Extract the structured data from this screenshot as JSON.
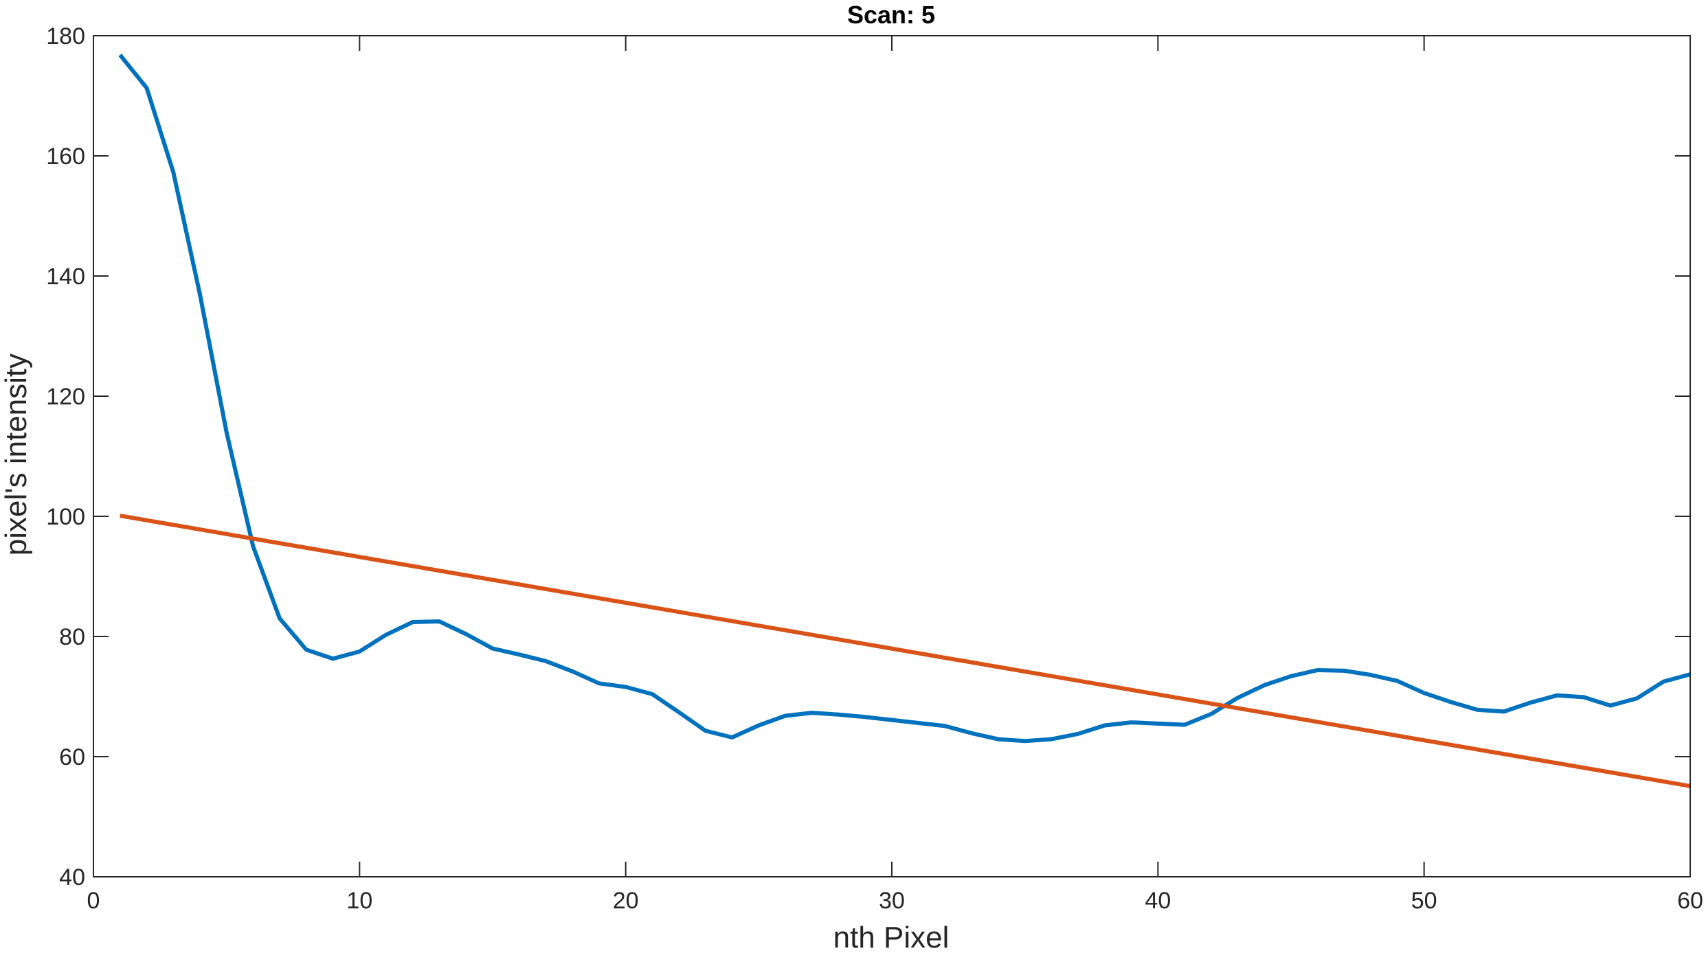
{
  "chart_data": {
    "type": "line",
    "title": "Scan: 5",
    "xlabel": "nth Pixel",
    "ylabel": "pixel's intensity",
    "xlim": [
      0,
      60
    ],
    "ylim": [
      40,
      180
    ],
    "xticks": [
      "0",
      "10",
      "20",
      "30",
      "40",
      "50",
      "60"
    ],
    "yticks": [
      "40",
      "60",
      "80",
      "100",
      "120",
      "140",
      "160",
      "180"
    ],
    "grid": false,
    "legend": "none",
    "series": [
      {
        "color": "#0072BD",
        "x": [
          1,
          2,
          3,
          4,
          5,
          6,
          7,
          8,
          9,
          10,
          11,
          12,
          13,
          14,
          15,
          16,
          17,
          18,
          19,
          20,
          21,
          22,
          23,
          24,
          25,
          26,
          27,
          28,
          29,
          30,
          31,
          32,
          33,
          34,
          35,
          36,
          37,
          38,
          39,
          40,
          41,
          42,
          43,
          44,
          45,
          46,
          47,
          48,
          49,
          50,
          51,
          52,
          53,
          54,
          55,
          56,
          57,
          58,
          59,
          60
        ],
        "y": [
          176.8,
          171.3,
          157.3,
          137,
          114,
          95,
          83,
          77.8,
          76.3,
          77.5,
          80.3,
          82.4,
          82.5,
          80.4,
          78,
          77,
          75.9,
          74.2,
          72.2,
          71.6,
          70.4,
          67.4,
          64.3,
          63.2,
          65.2,
          66.8,
          67.3,
          67,
          66.6,
          66.1,
          65.6,
          65.1,
          63.9,
          62.9,
          62.6,
          62.9,
          63.8,
          65.2,
          65.7,
          65.5,
          65.3,
          67.1,
          69.8,
          71.9,
          73.4,
          74.4,
          74.3,
          73.6,
          72.6,
          70.6,
          69.1,
          67.8,
          67.5,
          69,
          70.2,
          69.9,
          68.5,
          69.7,
          72.5,
          73.7
        ]
      },
      {
        "color": "#D95319",
        "x": [
          1,
          60
        ],
        "y": [
          100.1,
          55.1
        ]
      }
    ]
  }
}
